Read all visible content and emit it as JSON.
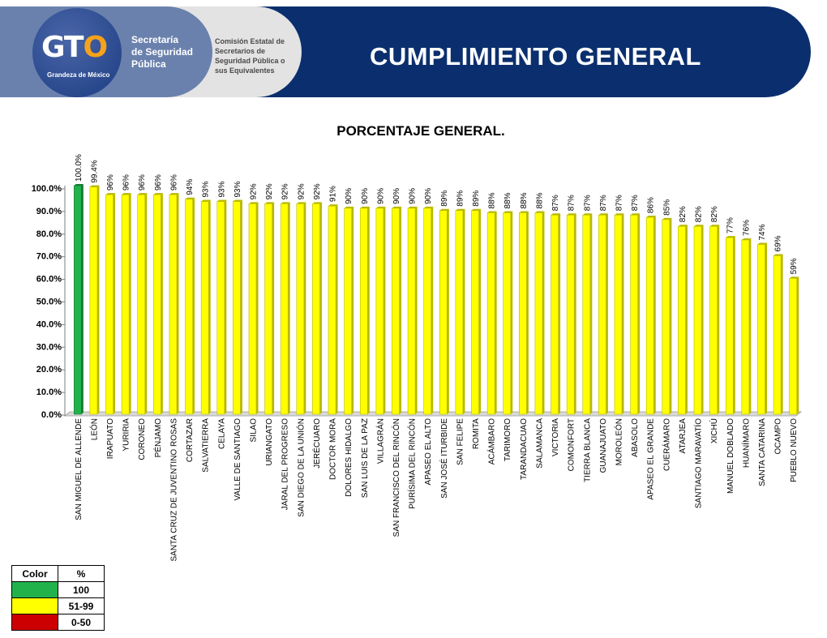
{
  "header": {
    "logo_text_a": "GT",
    "logo_text_b": "O",
    "logo_tagline": "Grandeza de México",
    "org_primary": "Secretaría\nde Seguridad\nPública",
    "org_secondary": "Comisión Estatal de\nSecretarios de\nSeguridad Pública o\nsus Equivalentes",
    "title": "CUMPLIMIENTO GENERAL"
  },
  "colors": {
    "banner": "#0b2f6e",
    "green": "#22b24c",
    "yellow": "#ffff00",
    "red": "#cc0000"
  },
  "chart_data": {
    "type": "bar",
    "title": "PORCENTAJE GENERAL.",
    "ylim": [
      0,
      100
    ],
    "yticks": [
      "0.0%",
      "10.0%",
      "20.0%",
      "30.0%",
      "40.0%",
      "50.0%",
      "60.0%",
      "70.0%",
      "80.0%",
      "90.0%",
      "100.0%"
    ],
    "grid": false,
    "categories": [
      "SAN MIGUEL DE ALLENDE",
      "LEÓN",
      "IRAPUATO",
      "YURIRIA",
      "CORONEO",
      "PÉNJAMO",
      "SANTA CRUZ DE JUVENTINO ROSAS",
      "CORTAZAR",
      "SALVATIERRA",
      "CELAYA",
      "VALLE DE SANTIAGO",
      "SILAO",
      "URIANGATO",
      "JARAL DEL PROGRESO",
      "SAN DIEGO DE LA UNIÓN",
      "JERÉCUARO",
      "DOCTOR MORA",
      "DOLORES HIDALGO",
      "SAN LUIS DE LA PAZ",
      "VILLAGRÁN",
      "SAN FRANCISCO DEL RINCÓN",
      "PURÍSIMA DEL RINCÓN",
      "APASEO EL ALTO",
      "SAN JOSÉ ITURBIDE",
      "SAN FELIPE",
      "ROMITA",
      "ACÁMBARO",
      "TARIMORO",
      "TARANDACUAO",
      "SALAMANCA",
      "VICTORIA",
      "COMONFORT",
      "TIERRA BLANCA",
      "GUANAJUATO",
      "MOROLEÓN",
      "ABASOLO",
      "APASEO EL GRANDE",
      "CUERÁMARO",
      "ATARJEA",
      "SANTIAGO MARAVATÍO",
      "XICHÚ",
      "MANUEL DOBLADO",
      "HUANÍMARO",
      "SANTA CATARINA",
      "OCAMPO",
      "PUEBLO NUEVO"
    ],
    "values": [
      100,
      99.4,
      96,
      96,
      96,
      96,
      96,
      94,
      93,
      93,
      93,
      92,
      92,
      92,
      92,
      92,
      91,
      90,
      90,
      90,
      90,
      90,
      90,
      89,
      89,
      89,
      88,
      88,
      88,
      88,
      87,
      87,
      87,
      87,
      87,
      87,
      86,
      85,
      82,
      82,
      82,
      77,
      76,
      74,
      69,
      59
    ],
    "data_labels": [
      "100.0%",
      "99.4%",
      "96%",
      "96%",
      "96%",
      "96%",
      "96%",
      "94%",
      "93%",
      "93%",
      "93%",
      "92%",
      "92%",
      "92%",
      "92%",
      "92%",
      "91%",
      "90%",
      "90%",
      "90%",
      "90%",
      "90%",
      "90%",
      "89%",
      "89%",
      "89%",
      "88%",
      "88%",
      "88%",
      "88%",
      "87%",
      "87%",
      "87%",
      "87%",
      "87%",
      "87%",
      "86%",
      "85%",
      "82%",
      "82%",
      "82%",
      "77%",
      "76%",
      "74%",
      "69%",
      "59%"
    ],
    "bar_colors": [
      "green",
      "yellow",
      "yellow",
      "yellow",
      "yellow",
      "yellow",
      "yellow",
      "yellow",
      "yellow",
      "yellow",
      "yellow",
      "yellow",
      "yellow",
      "yellow",
      "yellow",
      "yellow",
      "yellow",
      "yellow",
      "yellow",
      "yellow",
      "yellow",
      "yellow",
      "yellow",
      "yellow",
      "yellow",
      "yellow",
      "yellow",
      "yellow",
      "yellow",
      "yellow",
      "yellow",
      "yellow",
      "yellow",
      "yellow",
      "yellow",
      "yellow",
      "yellow",
      "yellow",
      "yellow",
      "yellow",
      "yellow",
      "yellow",
      "yellow",
      "yellow",
      "yellow",
      "yellow"
    ]
  },
  "legend": {
    "header_color": "Color",
    "header_pct": "%",
    "rows": [
      {
        "color": "green",
        "label": "100"
      },
      {
        "color": "yellow",
        "label": "51-99"
      },
      {
        "color": "red",
        "label": "0-50"
      }
    ]
  }
}
